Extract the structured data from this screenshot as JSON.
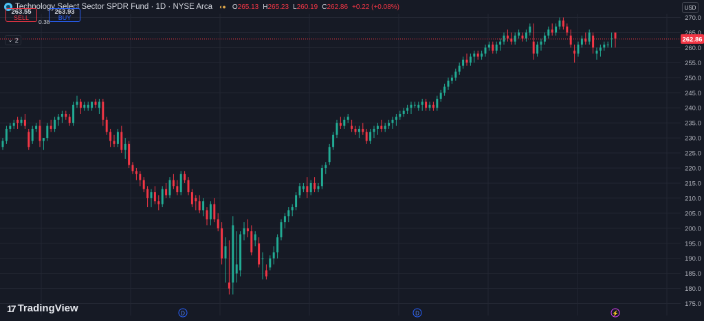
{
  "header": {
    "title": "Technology Select Sector SPDR Fund · 1D · NYSE Arca",
    "ohlc": [
      {
        "k": "O",
        "v": "265.13"
      },
      {
        "k": "H",
        "v": "265.23"
      },
      {
        "k": "L",
        "v": "260.19"
      },
      {
        "k": "C",
        "v": "262.86"
      }
    ],
    "change": "+0.22 (+0.08%)"
  },
  "trade": {
    "sell_price": "263.55",
    "sell_label": "SELL",
    "spread": "0.38",
    "buy_price": "263.93",
    "buy_label": "BUY"
  },
  "indicators_count": "2",
  "currency": "USD",
  "logo_text": "TradingView",
  "colors": {
    "up": "#22ab94",
    "down": "#f23645",
    "bg": "#161a25",
    "grid": "#232733"
  },
  "chart_data": {
    "type": "candlestick",
    "ylim": [
      172,
      272
    ],
    "yticks": [
      175,
      180,
      185,
      190,
      195,
      200,
      205,
      210,
      215,
      220,
      225,
      230,
      235,
      240,
      245,
      250,
      255,
      260,
      265,
      270
    ],
    "last_price": "262.86",
    "event_markers": [
      "D",
      "D",
      "⚡"
    ],
    "candles": [
      [
        227,
        230,
        226,
        229
      ],
      [
        229,
        234,
        228,
        233
      ],
      [
        233,
        235,
        232,
        234
      ],
      [
        234,
        236,
        233,
        235
      ],
      [
        236,
        237,
        233,
        235
      ],
      [
        235,
        237,
        234,
        236
      ],
      [
        236,
        238,
        233,
        234
      ],
      [
        232,
        233,
        226,
        227
      ],
      [
        229,
        234,
        228,
        233
      ],
      [
        233,
        235,
        232,
        234
      ],
      [
        234,
        236,
        227,
        229
      ],
      [
        229,
        230,
        226,
        230
      ],
      [
        230,
        235,
        229,
        234
      ],
      [
        234,
        236,
        232,
        233
      ],
      [
        233,
        237,
        232,
        236
      ],
      [
        236,
        238,
        234,
        237
      ],
      [
        237,
        239,
        235,
        238
      ],
      [
        238,
        239,
        236,
        237
      ],
      [
        237,
        238,
        234,
        235
      ],
      [
        235,
        242,
        234,
        241
      ],
      [
        241,
        244,
        240,
        242
      ],
      [
        242,
        243,
        238,
        240
      ],
      [
        240,
        242,
        239,
        241
      ],
      [
        240,
        242,
        239,
        241
      ],
      [
        240,
        242,
        239,
        242
      ],
      [
        242,
        243,
        240,
        241
      ],
      [
        240,
        243,
        238,
        242
      ],
      [
        242,
        243,
        234,
        236
      ],
      [
        236,
        237,
        231,
        232
      ],
      [
        232,
        233,
        227,
        229
      ],
      [
        229,
        231,
        227,
        228
      ],
      [
        228,
        233,
        227,
        232
      ],
      [
        232,
        234,
        225,
        226
      ],
      [
        226,
        230,
        223,
        228
      ],
      [
        228,
        229,
        220,
        221
      ],
      [
        221,
        222,
        218,
        219
      ],
      [
        219,
        220,
        216,
        218
      ],
      [
        218,
        219,
        214,
        216
      ],
      [
        216,
        217,
        212,
        213
      ],
      [
        213,
        214,
        207,
        210
      ],
      [
        210,
        213,
        207,
        212
      ],
      [
        212,
        214,
        208,
        209
      ],
      [
        209,
        211,
        206,
        208
      ],
      [
        208,
        214,
        207,
        213
      ],
      [
        213,
        215,
        210,
        211
      ],
      [
        211,
        217,
        210,
        216
      ],
      [
        216,
        218,
        213,
        214
      ],
      [
        214,
        216,
        211,
        212
      ],
      [
        212,
        219,
        211,
        218
      ],
      [
        218,
        219,
        215,
        216
      ],
      [
        216,
        217,
        211,
        212
      ],
      [
        212,
        213,
        207,
        208
      ],
      [
        210,
        211,
        206,
        209
      ],
      [
        209,
        211,
        205,
        206
      ],
      [
        206,
        210,
        204,
        209
      ],
      [
        206,
        207,
        201,
        203
      ],
      [
        203,
        209,
        201,
        208
      ],
      [
        208,
        210,
        202,
        203
      ],
      [
        203,
        205,
        199,
        200
      ],
      [
        200,
        202,
        188,
        190
      ],
      [
        190,
        197,
        182,
        194
      ],
      [
        182,
        196,
        178,
        180
      ],
      [
        182,
        204,
        178,
        201
      ],
      [
        185,
        199,
        182,
        188
      ],
      [
        186,
        199,
        184,
        198
      ],
      [
        198,
        202,
        196,
        200
      ],
      [
        200,
        203,
        197,
        199
      ],
      [
        199,
        201,
        191,
        192
      ],
      [
        196,
        199,
        194,
        198
      ],
      [
        195,
        197,
        187,
        188
      ],
      [
        190,
        192,
        183,
        190
      ],
      [
        186,
        188,
        183,
        184
      ],
      [
        187,
        191,
        186,
        190
      ],
      [
        190,
        194,
        188,
        192
      ],
      [
        192,
        198,
        190,
        197
      ],
      [
        197,
        203,
        196,
        202
      ],
      [
        202,
        205,
        200,
        204
      ],
      [
        204,
        207,
        202,
        206
      ],
      [
        206,
        208,
        204,
        207
      ],
      [
        207,
        212,
        206,
        211
      ],
      [
        211,
        215,
        210,
        214
      ],
      [
        213,
        215,
        212,
        214
      ],
      [
        214,
        217,
        210,
        212
      ],
      [
        212,
        216,
        211,
        215
      ],
      [
        215,
        217,
        212,
        213
      ],
      [
        213,
        215,
        212,
        214
      ],
      [
        214,
        221,
        213,
        220
      ],
      [
        220,
        222,
        218,
        221
      ],
      [
        222,
        228,
        221,
        227
      ],
      [
        227,
        232,
        226,
        231
      ],
      [
        231,
        236,
        230,
        235
      ],
      [
        235,
        237,
        233,
        234
      ],
      [
        234,
        237,
        233,
        236
      ],
      [
        236,
        238,
        235,
        237
      ],
      [
        234,
        236,
        232,
        233
      ],
      [
        233,
        234,
        231,
        232
      ],
      [
        232,
        234,
        230,
        233
      ],
      [
        233,
        235,
        231,
        232
      ],
      [
        232,
        233,
        228,
        229
      ],
      [
        229,
        233,
        228,
        232
      ],
      [
        232,
        234,
        230,
        233
      ],
      [
        233,
        235,
        231,
        234
      ],
      [
        234,
        236,
        232,
        233
      ],
      [
        233,
        235,
        232,
        234
      ],
      [
        234,
        236,
        233,
        235
      ],
      [
        235,
        237,
        233,
        236
      ],
      [
        236,
        238,
        234,
        237
      ],
      [
        237,
        239,
        236,
        238
      ],
      [
        238,
        240,
        237,
        239
      ],
      [
        239,
        241,
        238,
        240
      ],
      [
        240,
        242,
        238,
        241
      ],
      [
        241,
        242,
        240,
        241
      ],
      [
        240,
        242,
        239,
        241
      ],
      [
        241,
        243,
        239,
        242
      ],
      [
        242,
        243,
        239,
        240
      ],
      [
        240,
        242,
        239,
        241
      ],
      [
        241,
        242,
        239,
        240
      ],
      [
        240,
        244,
        239,
        243
      ],
      [
        243,
        246,
        242,
        245
      ],
      [
        245,
        248,
        244,
        247
      ],
      [
        247,
        250,
        246,
        249
      ],
      [
        249,
        251,
        248,
        250
      ],
      [
        250,
        253,
        249,
        252
      ],
      [
        252,
        255,
        251,
        254
      ],
      [
        254,
        257,
        253,
        256
      ],
      [
        256,
        258,
        254,
        255
      ],
      [
        255,
        258,
        254,
        257
      ],
      [
        257,
        259,
        255,
        258
      ],
      [
        258,
        259,
        256,
        257
      ],
      [
        257,
        259,
        256,
        258
      ],
      [
        258,
        261,
        257,
        260
      ],
      [
        260,
        262,
        259,
        261
      ],
      [
        261,
        262,
        258,
        259
      ],
      [
        259,
        262,
        258,
        261
      ],
      [
        261,
        263,
        259,
        262
      ],
      [
        262,
        265,
        261,
        264
      ],
      [
        264,
        266,
        262,
        263
      ],
      [
        263,
        265,
        261,
        262
      ],
      [
        262,
        265,
        261,
        264
      ],
      [
        264,
        266,
        263,
        265
      ],
      [
        264,
        265,
        262,
        263
      ],
      [
        263,
        266,
        262,
        265
      ],
      [
        265,
        268,
        264,
        267
      ],
      [
        262,
        268,
        256,
        258
      ],
      [
        258,
        262,
        257,
        261
      ],
      [
        261,
        263,
        259,
        262
      ],
      [
        262,
        265,
        261,
        264
      ],
      [
        264,
        267,
        263,
        266
      ],
      [
        266,
        268,
        264,
        265
      ],
      [
        265,
        268,
        264,
        267
      ],
      [
        267,
        270,
        266,
        269
      ],
      [
        269,
        270,
        266,
        267
      ],
      [
        267,
        268,
        264,
        265
      ],
      [
        264,
        266,
        260,
        261
      ],
      [
        259,
        261,
        255,
        258
      ],
      [
        258,
        262,
        257,
        261
      ],
      [
        261,
        264,
        260,
        263
      ],
      [
        263,
        265,
        261,
        262
      ],
      [
        262,
        266,
        261,
        265
      ],
      [
        264,
        265,
        258,
        260
      ],
      [
        258,
        260,
        256,
        259
      ],
      [
        259,
        261,
        257,
        260
      ],
      [
        260,
        262,
        259,
        261
      ],
      [
        261,
        262,
        260,
        261
      ],
      [
        263,
        265,
        260,
        263
      ],
      [
        265,
        265,
        260,
        263
      ]
    ]
  }
}
